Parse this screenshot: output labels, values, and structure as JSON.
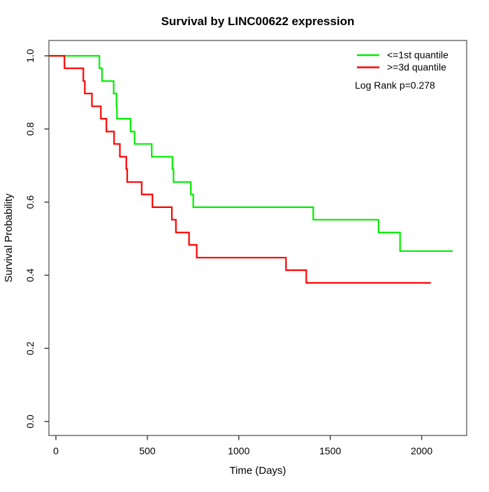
{
  "chart_data": {
    "type": "line",
    "subtype": "kaplan-meier-step",
    "title": "Survival by LINC00622 expression",
    "xlabel": "Time (Days)",
    "ylabel": "Survival Probability",
    "xlim": [
      0,
      2250
    ],
    "ylim": [
      0,
      1
    ],
    "grid": false,
    "legend_position": "top-right",
    "x_ticks": [
      "0",
      "500",
      "1000",
      "1500",
      "2000"
    ],
    "y_ticks": [
      "0.0",
      "0.2",
      "0.4",
      "0.6",
      "0.8",
      "1.0"
    ],
    "legend": [
      {
        "label": "<=1st quantile",
        "color": "#00ee00"
      },
      {
        "label": ">=3d quantile",
        "color": "#ff0000"
      }
    ],
    "annotation": "Log Rank p=0.278",
    "series": [
      {
        "name": "<=1st quantile",
        "color": "#00ee00",
        "points": [
          [
            0,
            1.0
          ],
          [
            238,
            0.966
          ],
          [
            252,
            0.931
          ],
          [
            316,
            0.897
          ],
          [
            331,
            0.862
          ],
          [
            334,
            0.828
          ],
          [
            408,
            0.793
          ],
          [
            430,
            0.759
          ],
          [
            524,
            0.724
          ],
          [
            637,
            0.69
          ],
          [
            643,
            0.655
          ],
          [
            738,
            0.621
          ],
          [
            751,
            0.586
          ],
          [
            1407,
            0.552
          ],
          [
            1764,
            0.517
          ],
          [
            1882,
            0.466
          ],
          [
            2170,
            0.466
          ]
        ]
      },
      {
        "name": ">=3d quantile",
        "color": "#ff0000",
        "points": [
          [
            0,
            1.0
          ],
          [
            47,
            0.966
          ],
          [
            150,
            0.931
          ],
          [
            158,
            0.897
          ],
          [
            197,
            0.862
          ],
          [
            246,
            0.828
          ],
          [
            276,
            0.793
          ],
          [
            318,
            0.759
          ],
          [
            350,
            0.724
          ],
          [
            385,
            0.69
          ],
          [
            390,
            0.655
          ],
          [
            469,
            0.621
          ],
          [
            528,
            0.586
          ],
          [
            634,
            0.552
          ],
          [
            656,
            0.517
          ],
          [
            728,
            0.483
          ],
          [
            770,
            0.448
          ],
          [
            1258,
            0.414
          ],
          [
            1369,
            0.379
          ],
          [
            2050,
            0.379
          ]
        ]
      }
    ]
  },
  "colors": {
    "background": "#ffffff",
    "box": "#777777",
    "tick": "#444444",
    "text": "#000000"
  }
}
